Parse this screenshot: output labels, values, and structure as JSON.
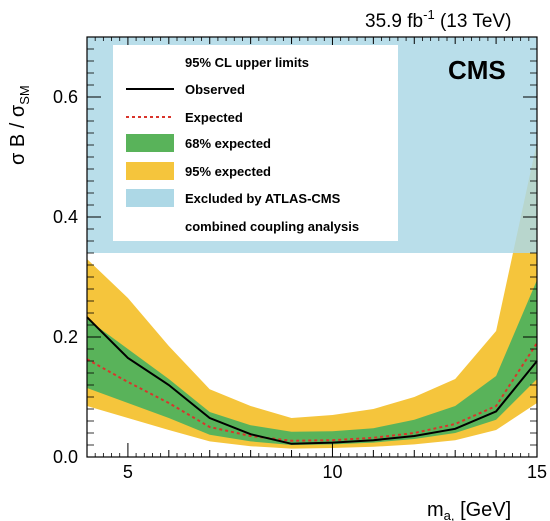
{
  "lumi": {
    "prefix": "35.9 fb",
    "exponent": "-1",
    "suffix": " (13 TeV)"
  },
  "experiment": "CMS",
  "axes": {
    "xlabel_main": "m",
    "xlabel_sub": "a,",
    "xlabel_unit": " [GeV]",
    "ylabel_pre": "σ B / σ",
    "ylabel_sub": "SM"
  },
  "legend": {
    "header": "95% CL upper limits",
    "observed": "Observed",
    "expected": "Expected",
    "band68": "68% expected",
    "band95": "95% expected",
    "excluded_line1": "Excluded by ATLAS-CMS",
    "excluded_line2": "combined coupling analysis"
  },
  "colors": {
    "excluded": "#add8e6",
    "band95": "#f5c53c",
    "band68": "#59b35a",
    "observed": "#000000",
    "expected": "#d9342b"
  },
  "chart_data": {
    "type": "line",
    "xlim": [
      4,
      15
    ],
    "ylim": [
      0,
      0.7
    ],
    "xticks": [
      5,
      10,
      15
    ],
    "yticks": [
      0.0,
      0.2,
      0.4,
      0.6
    ],
    "ytick_labels": [
      "0.0",
      "0.2",
      "0.4",
      "0.6"
    ],
    "excluded_above": 0.34,
    "x": [
      4,
      5,
      6,
      7,
      8,
      9,
      10,
      11,
      12,
      13,
      14,
      15
    ],
    "series": [
      {
        "name": "Observed",
        "values": [
          0.233,
          0.165,
          0.12,
          0.065,
          0.038,
          0.022,
          0.024,
          0.028,
          0.035,
          0.047,
          0.076,
          0.16
        ]
      },
      {
        "name": "Expected",
        "values": [
          0.163,
          0.125,
          0.09,
          0.05,
          0.035,
          0.027,
          0.028,
          0.032,
          0.04,
          0.055,
          0.085,
          0.19
        ]
      }
    ],
    "band68": {
      "low": [
        0.115,
        0.09,
        0.065,
        0.037,
        0.026,
        0.02,
        0.021,
        0.024,
        0.03,
        0.04,
        0.062,
        0.13
      ],
      "high": [
        0.23,
        0.18,
        0.13,
        0.075,
        0.053,
        0.042,
        0.043,
        0.048,
        0.062,
        0.085,
        0.135,
        0.295
      ]
    },
    "band95": {
      "low": [
        0.085,
        0.065,
        0.045,
        0.026,
        0.018,
        0.014,
        0.015,
        0.017,
        0.021,
        0.028,
        0.045,
        0.09
      ],
      "high": [
        0.33,
        0.265,
        0.185,
        0.113,
        0.085,
        0.065,
        0.07,
        0.08,
        0.1,
        0.13,
        0.21,
        0.525
      ]
    }
  }
}
